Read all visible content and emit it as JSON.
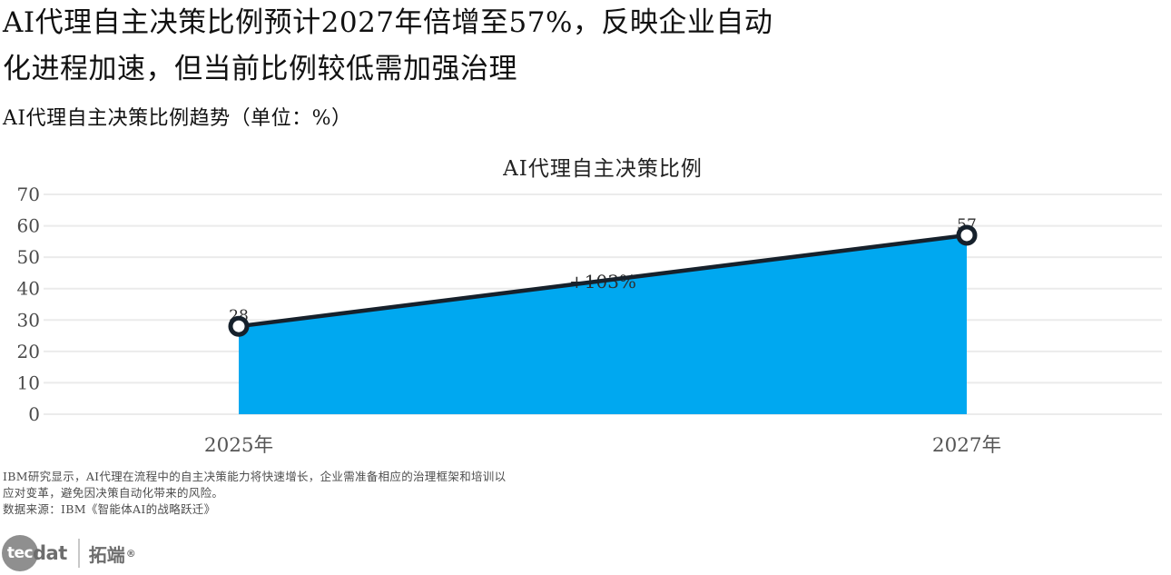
{
  "header": {
    "title": "AI代理自主决策比例预计2027年倍增至57%，反映企业自动化进程加速，但当前比例较低需加强治理",
    "subtitle": "AI代理自主决策比例趋势（单位：%）"
  },
  "chart_data": {
    "type": "area",
    "title": "AI代理自主决策比例",
    "categories": [
      "2025年",
      "2027年"
    ],
    "values": [
      28,
      57
    ],
    "point_labels": [
      "28",
      "57"
    ],
    "annotation": "+103%",
    "xlabel": "",
    "ylabel": "",
    "ylim": [
      0,
      70
    ],
    "yticks": [
      0,
      10,
      20,
      30,
      40,
      50,
      60,
      70
    ],
    "grid": true,
    "legend": "none",
    "colors": {
      "area": "#00a8f0",
      "line": "#16212c",
      "grid": "#ebebeb",
      "tick": "#4a4a4a",
      "label": "#2f2f2f",
      "marker_fill": "#ffffff"
    }
  },
  "footer": {
    "note_line1": "IBM研究显示，AI代理在流程中的自主决策能力将快速增长，企业需准备相应的治理框架和培训以",
    "note_line2": "应对变革，避免因决策自动化带来的风险。",
    "source": "数据来源：IBM《智能体AI的战略跃迁》"
  },
  "logo": {
    "circle_text": "tec",
    "suffix": "dat",
    "brand": "拓端",
    "registered_mark": "®"
  }
}
